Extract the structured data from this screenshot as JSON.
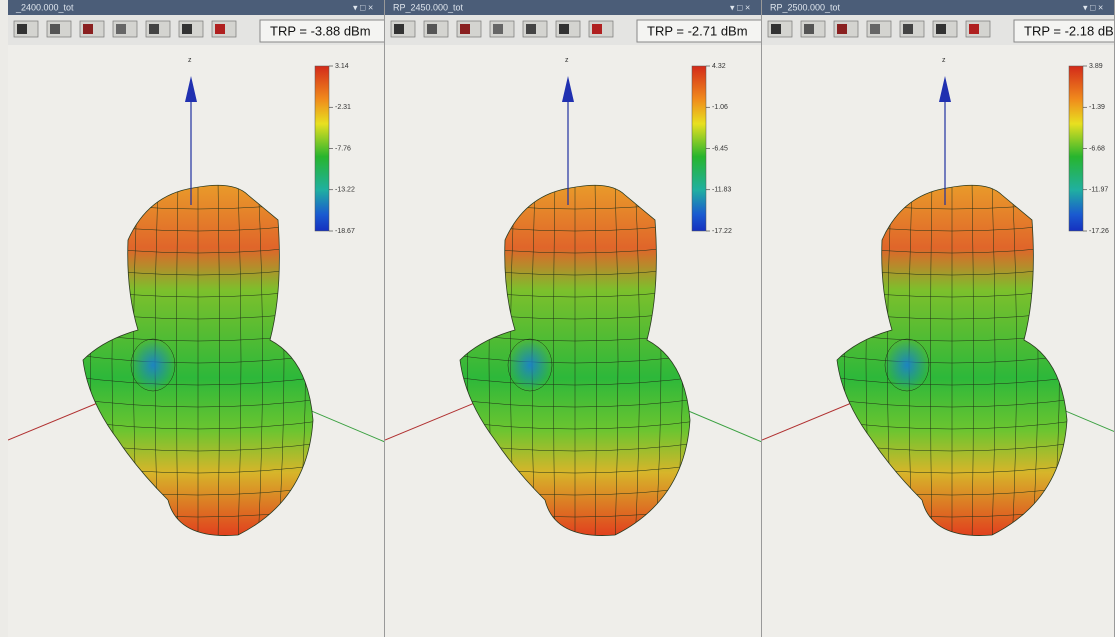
{
  "panels": [
    {
      "title": "_2400.000_tot",
      "trp": "TRP = -3.88 dBm",
      "axis": "z",
      "scale": [
        "3.14",
        "-2.31",
        "-7.76",
        "-13.22",
        "-18.67"
      ]
    },
    {
      "title": "RP_2450.000_tot",
      "trp": "TRP = -2.71 dBm",
      "axis": "z",
      "scale": [
        "4.32",
        "-1.06",
        "-6.45",
        "-11.83",
        "-17.22"
      ]
    },
    {
      "title": "RP_2500.000_tot",
      "trp": "TRP = -2.18 dBm",
      "axis": "z",
      "scale": [
        "3.89",
        "-1.39",
        "-6.68",
        "-11.97",
        "-17.26"
      ]
    }
  ]
}
